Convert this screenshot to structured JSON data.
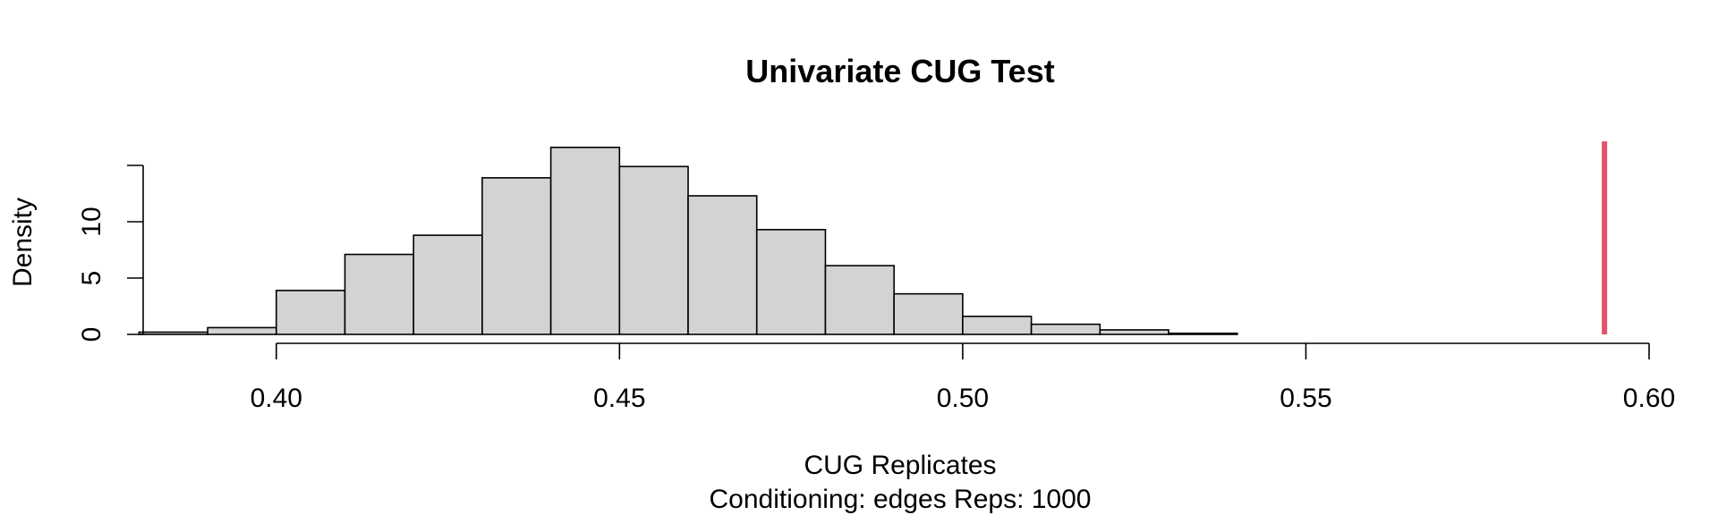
{
  "chart_data": {
    "type": "bar",
    "subtype": "histogram",
    "title": "Univariate CUG Test",
    "xlabel": "CUG Replicates",
    "subtitle": "Conditioning: edges Reps: 1000",
    "ylabel": "Density",
    "xlim": [
      0.378,
      0.6
    ],
    "ylim": [
      0,
      16.5
    ],
    "x_ticks": [
      0.4,
      0.45,
      0.5,
      0.55,
      0.6
    ],
    "x_tick_labels": [
      "0.40",
      "0.45",
      "0.50",
      "0.55",
      "0.60"
    ],
    "y_ticks": [
      0,
      5,
      10,
      15
    ],
    "y_tick_labels": [
      "0",
      "5",
      "10",
      ""
    ],
    "bin_width": 0.01,
    "bins": [
      {
        "start": 0.38,
        "end": 0.39,
        "density": 0.2
      },
      {
        "start": 0.39,
        "end": 0.4,
        "density": 0.6
      },
      {
        "start": 0.4,
        "end": 0.41,
        "density": 3.9
      },
      {
        "start": 0.41,
        "end": 0.42,
        "density": 7.1
      },
      {
        "start": 0.42,
        "end": 0.43,
        "density": 8.8
      },
      {
        "start": 0.43,
        "end": 0.44,
        "density": 13.9
      },
      {
        "start": 0.44,
        "end": 0.45,
        "density": 16.6
      },
      {
        "start": 0.45,
        "end": 0.46,
        "density": 14.9
      },
      {
        "start": 0.46,
        "end": 0.47,
        "density": 12.3
      },
      {
        "start": 0.47,
        "end": 0.48,
        "density": 9.3
      },
      {
        "start": 0.48,
        "end": 0.49,
        "density": 6.1
      },
      {
        "start": 0.49,
        "end": 0.5,
        "density": 3.6
      },
      {
        "start": 0.5,
        "end": 0.51,
        "density": 1.6
      },
      {
        "start": 0.51,
        "end": 0.52,
        "density": 0.9
      },
      {
        "start": 0.52,
        "end": 0.53,
        "density": 0.4
      },
      {
        "start": 0.53,
        "end": 0.54,
        "density": 0.1
      }
    ],
    "observed_value": 0.5935,
    "colors": {
      "bar_fill": "#d3d3d3",
      "bar_stroke": "#000000",
      "observed_line": "#df536b"
    },
    "grid": false,
    "legend": "none"
  }
}
